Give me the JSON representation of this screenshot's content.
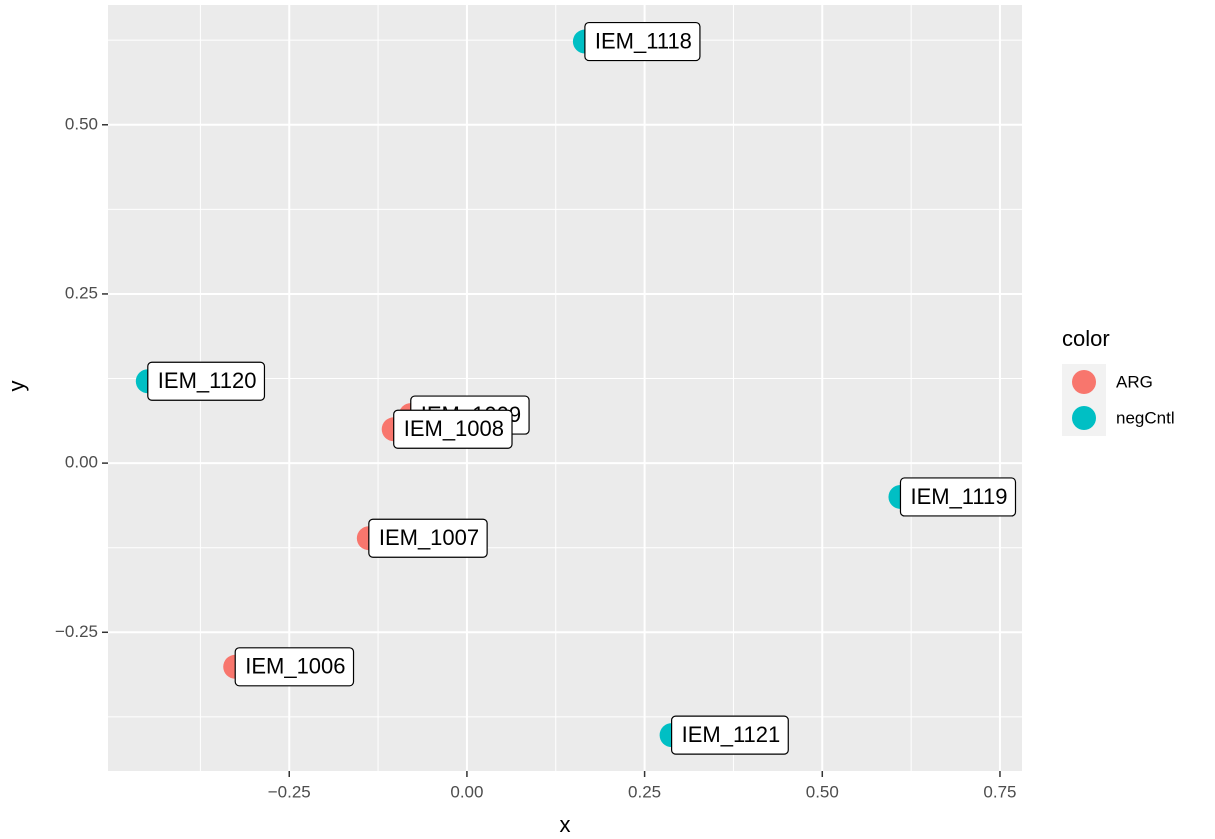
{
  "chart_data": {
    "type": "scatter",
    "x_label": "x",
    "y_label": "y",
    "legend_title": "color",
    "legend_position": "right",
    "xlim": [
      -0.505,
      0.781
    ],
    "ylim": [
      -0.455,
      0.677
    ],
    "xticks": [
      {
        "value": -0.25,
        "label": "−0.25"
      },
      {
        "value": 0,
        "label": "0.00"
      },
      {
        "value": 0.25,
        "label": "0.25"
      },
      {
        "value": 0.5,
        "label": "0.50"
      },
      {
        "value": 0.75,
        "label": "0.75"
      }
    ],
    "yticks": [
      {
        "value": -0.25,
        "label": "−0.25"
      },
      {
        "value": 0,
        "label": "0.00"
      },
      {
        "value": 0.25,
        "label": "0.25"
      },
      {
        "value": 0.5,
        "label": "0.50"
      }
    ],
    "grid": true,
    "series": [
      {
        "name": "ARG",
        "color": "#F8766D",
        "labels": [
          "IEM_1009",
          "IEM_1008",
          "IEM_1007",
          "IEM_1006"
        ],
        "x": [
          -0.079,
          -0.103,
          -0.138,
          -0.326
        ],
        "values": [
          0.071,
          0.05,
          -0.111,
          -0.301
        ]
      },
      {
        "name": "negCntl",
        "color": "#00BFC4",
        "labels": [
          "IEM_1118",
          "IEM_1120",
          "IEM_1119",
          "IEM_1121"
        ],
        "x": [
          0.166,
          -0.449,
          0.61,
          0.288
        ],
        "values": [
          0.623,
          0.121,
          -0.05,
          -0.402
        ]
      }
    ]
  }
}
